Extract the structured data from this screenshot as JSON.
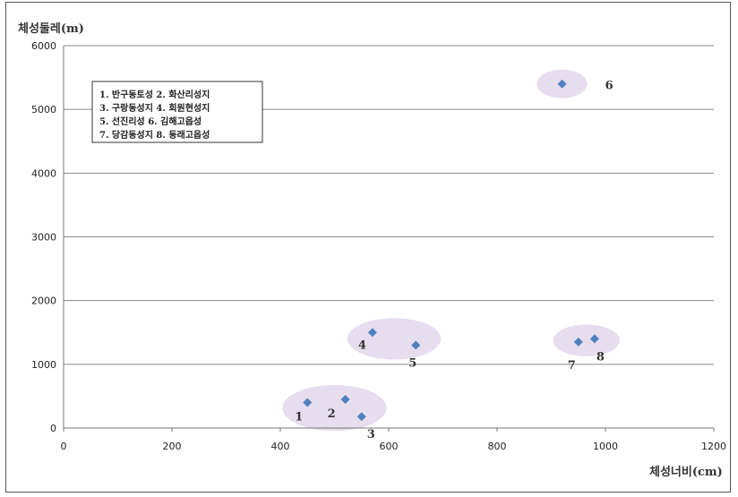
{
  "chart_data": {
    "type": "scatter",
    "ylabel": "체성둘레(m)",
    "xlabel": "체성너비(cm)",
    "xlim": [
      0,
      1200
    ],
    "ylim": [
      0,
      6000
    ],
    "xticks": [
      0,
      200,
      400,
      600,
      800,
      1000,
      1200
    ],
    "yticks": [
      0,
      1000,
      2000,
      3000,
      4000,
      5000,
      6000
    ],
    "grid": "horizontal",
    "marker_color": "#4F81BD",
    "highlight_color": "#E3D9EC",
    "points": [
      {
        "id": "1",
        "x": 450,
        "y": 400
      },
      {
        "id": "2",
        "x": 520,
        "y": 450
      },
      {
        "id": "3",
        "x": 550,
        "y": 180
      },
      {
        "id": "4",
        "x": 570,
        "y": 1500
      },
      {
        "id": "5",
        "x": 650,
        "y": 1300
      },
      {
        "id": "6",
        "x": 920,
        "y": 5400
      },
      {
        "id": "7",
        "x": 950,
        "y": 1350
      },
      {
        "id": "8",
        "x": 980,
        "y": 1400
      }
    ],
    "legend": {
      "lines": [
        "1. 반구동토성  2. 화산리성지",
        "3. 구랑동성지  4. 회원현성지",
        "5. 선진리성    6. 김해고읍성",
        "7. 당감동성지  8. 동래고읍성"
      ]
    }
  }
}
